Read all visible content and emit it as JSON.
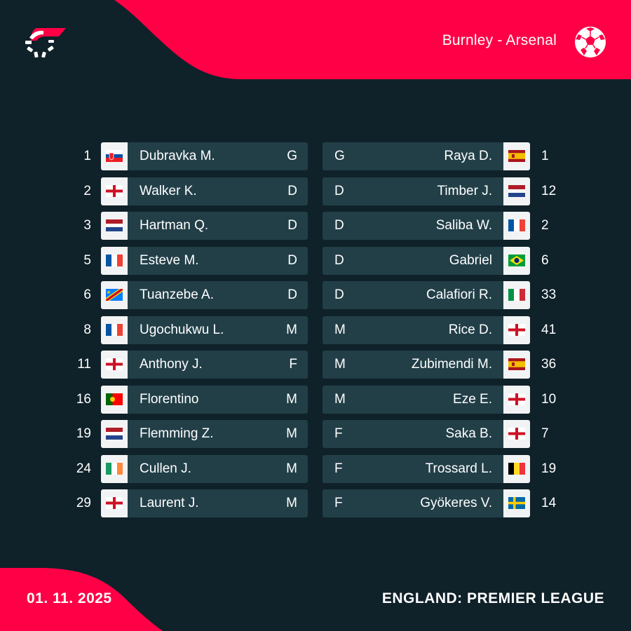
{
  "header": {
    "match": "Burnley - Arsenal"
  },
  "colors": {
    "accent": "#ff0046",
    "background": "#0f2129",
    "row": "#223f48"
  },
  "home": [
    {
      "num": "1",
      "name": "Dubravka M.",
      "pos": "G",
      "flag": "svk"
    },
    {
      "num": "2",
      "name": "Walker K.",
      "pos": "D",
      "flag": "eng"
    },
    {
      "num": "3",
      "name": "Hartman Q.",
      "pos": "D",
      "flag": "ned"
    },
    {
      "num": "5",
      "name": "Esteve M.",
      "pos": "D",
      "flag": "fra"
    },
    {
      "num": "6",
      "name": "Tuanzebe A.",
      "pos": "D",
      "flag": "cod"
    },
    {
      "num": "8",
      "name": "Ugochukwu L.",
      "pos": "M",
      "flag": "fra"
    },
    {
      "num": "11",
      "name": "Anthony J.",
      "pos": "F",
      "flag": "eng"
    },
    {
      "num": "16",
      "name": "Florentino",
      "pos": "M",
      "flag": "por"
    },
    {
      "num": "19",
      "name": "Flemming Z.",
      "pos": "M",
      "flag": "ned"
    },
    {
      "num": "24",
      "name": "Cullen J.",
      "pos": "M",
      "flag": "irl"
    },
    {
      "num": "29",
      "name": "Laurent J.",
      "pos": "M",
      "flag": "eng"
    }
  ],
  "away": [
    {
      "num": "1",
      "name": "Raya D.",
      "pos": "G",
      "flag": "esp"
    },
    {
      "num": "12",
      "name": "Timber J.",
      "pos": "D",
      "flag": "ned"
    },
    {
      "num": "2",
      "name": "Saliba W.",
      "pos": "D",
      "flag": "fra"
    },
    {
      "num": "6",
      "name": "Gabriel",
      "pos": "D",
      "flag": "bra"
    },
    {
      "num": "33",
      "name": "Calafiori R.",
      "pos": "D",
      "flag": "ita"
    },
    {
      "num": "41",
      "name": "Rice D.",
      "pos": "M",
      "flag": "eng"
    },
    {
      "num": "36",
      "name": "Zubimendi M.",
      "pos": "M",
      "flag": "esp"
    },
    {
      "num": "10",
      "name": "Eze E.",
      "pos": "M",
      "flag": "eng"
    },
    {
      "num": "7",
      "name": "Saka B.",
      "pos": "F",
      "flag": "eng"
    },
    {
      "num": "19",
      "name": "Trossard L.",
      "pos": "F",
      "flag": "bel"
    },
    {
      "num": "14",
      "name": "Gyökeres V.",
      "pos": "F",
      "flag": "swe"
    }
  ],
  "footer": {
    "date": "01. 11. 2025",
    "league": "ENGLAND: PREMIER LEAGUE"
  }
}
